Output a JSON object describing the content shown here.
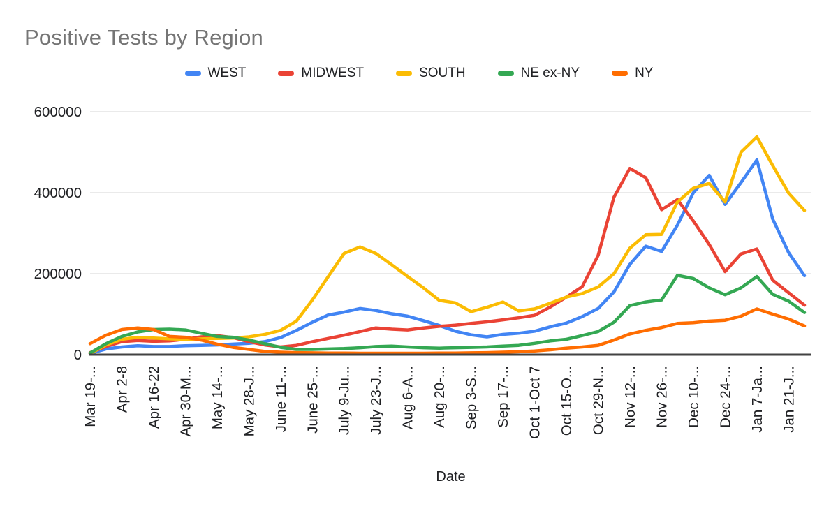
{
  "title": "Positive Tests by Region",
  "legend": {
    "items": [
      {
        "label": "WEST",
        "color": "#4285F4"
      },
      {
        "label": "MIDWEST",
        "color": "#EA4335"
      },
      {
        "label": "SOUTH",
        "color": "#FBBC04"
      },
      {
        "label": "NE ex-NY",
        "color": "#34A853"
      },
      {
        "label": "NY",
        "color": "#FF6D01"
      }
    ]
  },
  "y_axis": {
    "tick_labels": [
      "0",
      "200000",
      "400000",
      "600000"
    ],
    "tick_values": [
      0,
      200000,
      400000,
      600000
    ]
  },
  "x_axis": {
    "title": "Date",
    "tick_labels": [
      "Mar 19-...",
      "Apr 2-8",
      "Apr 16-22",
      "Apr 30-M...",
      "May 14-...",
      "May 28-J...",
      "June 11-...",
      "June 25-...",
      "July 9-Ju...",
      "July 23-J...",
      "Aug 6-A...",
      "Aug 20-...",
      "Sep 3-S...",
      "Sep 17-...",
      "Oct 1-Oct 7",
      "Oct 15-O...",
      "Oct 29-N...",
      "Nov 12-...",
      "Nov 26-...",
      "Dec 10-...",
      "Dec 24-...",
      "Jan 7-Ja...",
      "Jan 21-J..."
    ]
  },
  "chart_data": {
    "type": "line",
    "title": "Positive Tests by Region",
    "xlabel": "Date",
    "ylabel": "",
    "ylim": [
      0,
      600000
    ],
    "grid": "horizontal",
    "legend_position": "top",
    "n_points": 46,
    "label_every": 2,
    "x_tick_labels": [
      "Mar 19-...",
      "Apr 2-8",
      "Apr 16-22",
      "Apr 30-M...",
      "May 14-...",
      "May 28-J...",
      "June 11-...",
      "June 25-...",
      "July 9-Ju...",
      "July 23-J...",
      "Aug 6-A...",
      "Aug 20-...",
      "Sep 3-S...",
      "Sep 17-...",
      "Oct 1-Oct 7",
      "Oct 15-O...",
      "Oct 29-N...",
      "Nov 12-...",
      "Nov 26-...",
      "Dec 10-...",
      "Dec 24-...",
      "Jan 7-Ja...",
      "Jan 21-J..."
    ],
    "series": [
      {
        "name": "WEST",
        "color": "#4285F4",
        "values": [
          3000,
          14000,
          19000,
          22000,
          20000,
          20000,
          22000,
          23000,
          24000,
          26000,
          28000,
          32000,
          42000,
          60000,
          80000,
          98000,
          105000,
          114000,
          109000,
          101000,
          95000,
          84000,
          72000,
          58000,
          49000,
          44000,
          50000,
          53000,
          58000,
          69000,
          78000,
          94000,
          114000,
          155000,
          223000,
          268000,
          255000,
          320000,
          400000,
          443000,
          371000,
          425000,
          481000,
          335000,
          252000,
          195000
        ]
      },
      {
        "name": "MIDWEST",
        "color": "#EA4335",
        "values": [
          5000,
          20000,
          32000,
          35000,
          33000,
          34000,
          38000,
          44000,
          47000,
          42000,
          32000,
          24000,
          19000,
          23000,
          32000,
          40000,
          48000,
          57000,
          66000,
          63000,
          61000,
          66000,
          70000,
          73000,
          77000,
          81000,
          86000,
          91000,
          97000,
          118000,
          142000,
          168000,
          245000,
          389000,
          460000,
          437000,
          358000,
          383000,
          330000,
          272000,
          205000,
          249000,
          261000,
          184000,
          153000,
          122000
        ]
      },
      {
        "name": "SOUTH",
        "color": "#FBBC04",
        "values": [
          3000,
          24000,
          38000,
          43000,
          41000,
          39000,
          38000,
          39000,
          40000,
          41000,
          44000,
          50000,
          60000,
          83000,
          135000,
          193000,
          250000,
          266000,
          250000,
          222000,
          193000,
          165000,
          134000,
          128000,
          106000,
          117000,
          130000,
          108000,
          113000,
          127000,
          142000,
          151000,
          167000,
          200000,
          263000,
          296000,
          297000,
          377000,
          411000,
          423000,
          377000,
          500000,
          538000,
          467000,
          399000,
          356000
        ]
      },
      {
        "name": "NE ex-NY",
        "color": "#34A853",
        "values": [
          4000,
          27000,
          45000,
          56000,
          62000,
          63000,
          61000,
          53000,
          45000,
          43000,
          36000,
          27000,
          18000,
          13000,
          13000,
          14000,
          15000,
          17000,
          20000,
          21000,
          19000,
          17000,
          16000,
          17000,
          18000,
          19000,
          21000,
          23000,
          28000,
          34000,
          38000,
          47000,
          57000,
          80000,
          121000,
          130000,
          135000,
          196000,
          188000,
          165000,
          148000,
          165000,
          193000,
          149000,
          132000,
          104000
        ]
      },
      {
        "name": "NY",
        "color": "#FF6D01",
        "values": [
          27000,
          48000,
          62000,
          66000,
          62000,
          45000,
          43000,
          36000,
          26000,
          18000,
          13000,
          8000,
          6000,
          5000,
          4500,
          4000,
          4000,
          3500,
          3500,
          3500,
          3500,
          3500,
          4000,
          4000,
          4500,
          5000,
          6000,
          7000,
          9000,
          12000,
          16000,
          19000,
          23000,
          36000,
          51000,
          60000,
          67000,
          77000,
          79000,
          83000,
          85000,
          95000,
          113000,
          100000,
          88000,
          71000
        ]
      }
    ],
    "colors": {
      "axis_line": "#424242",
      "gridline": "#e3e3e3",
      "tick_text": "#202124",
      "title_text": "#757575"
    }
  }
}
